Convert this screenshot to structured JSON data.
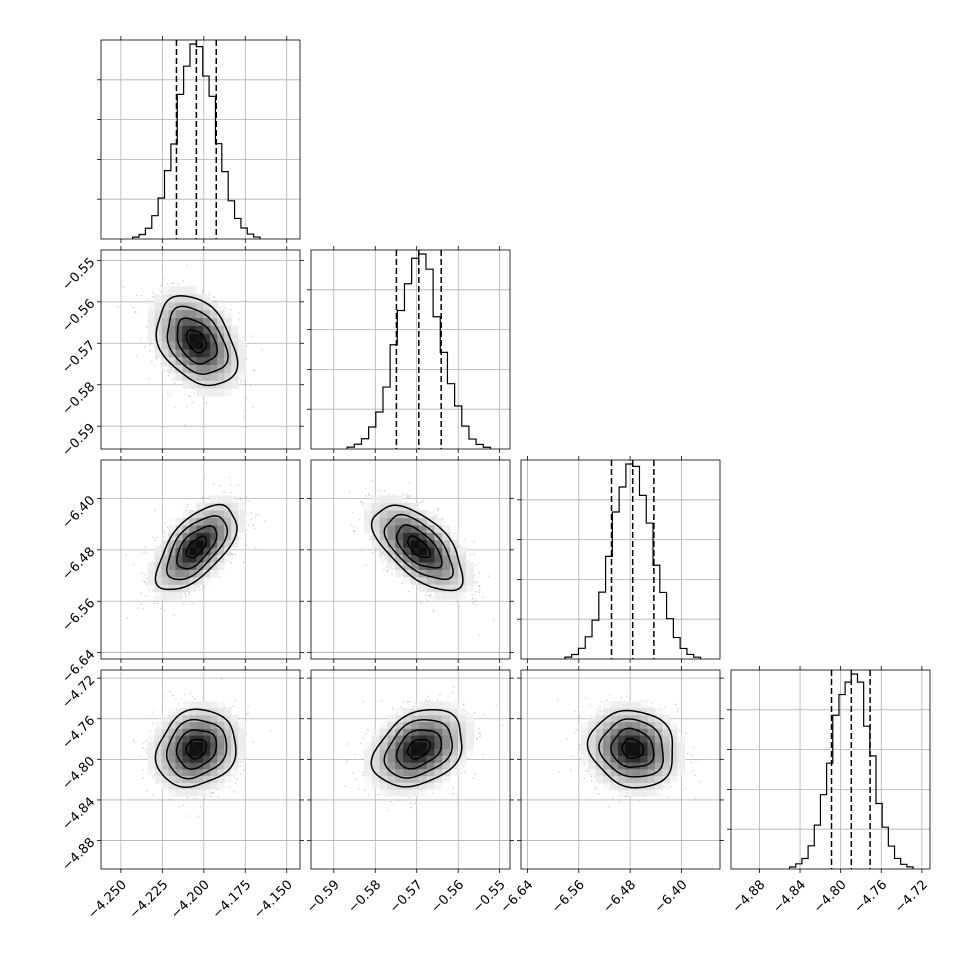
{
  "chart_data": {
    "type": "corner",
    "title": "",
    "grid": true,
    "colors": {
      "hist": "#000000",
      "points": "#9a9a9a",
      "contour": "#000000"
    },
    "parameters": [
      {
        "name": "p0",
        "label": "",
        "range": [
          -4.262,
          -4.142
        ],
        "ticks": [
          -4.25,
          -4.225,
          -4.2,
          -4.175,
          -4.15
        ],
        "tick_labels": [
          "−4.250",
          "−4.225",
          "−4.200",
          "−4.175",
          "−4.150"
        ],
        "median": -4.2045,
        "q16": -4.2165,
        "q84": -4.1925,
        "sigma": 0.012,
        "hist_bins": 20
      },
      {
        "name": "p1",
        "label": "",
        "range": [
          -0.5955,
          -0.5475
        ],
        "ticks": [
          -0.59,
          -0.58,
          -0.57,
          -0.56,
          -0.55
        ],
        "tick_labels": [
          "−0.59",
          "−0.58",
          "−0.57",
          "−0.56",
          "−0.55"
        ],
        "median": -0.5695,
        "q16": -0.5749,
        "q84": -0.5641,
        "sigma": 0.0054,
        "hist_bins": 20
      },
      {
        "name": "p2",
        "label": "",
        "range": [
          -6.65,
          -6.34
        ],
        "ticks": [
          -6.64,
          -6.56,
          -6.48,
          -6.4
        ],
        "tick_labels": [
          "−6.64",
          "−6.56",
          "−6.48",
          "−6.40"
        ],
        "median": -6.476,
        "q16": -6.509,
        "q84": -6.443,
        "sigma": 0.033,
        "hist_bins": 20
      },
      {
        "name": "p3",
        "label": "",
        "range": [
          -4.908,
          -4.712
        ],
        "ticks": [
          -4.88,
          -4.84,
          -4.8,
          -4.76,
          -4.72
        ],
        "tick_labels": [
          "−4.88",
          "−4.84",
          "−4.80",
          "−4.76",
          "−4.72"
        ],
        "median": -4.7895,
        "q16": -4.809,
        "q84": -4.771,
        "sigma": 0.019,
        "hist_bins": 20
      }
    ],
    "correlations": [
      {
        "pair": [
          0,
          1
        ],
        "rho": -0.35
      },
      {
        "pair": [
          0,
          2
        ],
        "rho": 0.6
      },
      {
        "pair": [
          1,
          2
        ],
        "rho": -0.6
      },
      {
        "pair": [
          0,
          3
        ],
        "rho": 0.15
      },
      {
        "pair": [
          1,
          3
        ],
        "rho": 0.3
      },
      {
        "pair": [
          2,
          3
        ],
        "rho": -0.1
      }
    ]
  }
}
